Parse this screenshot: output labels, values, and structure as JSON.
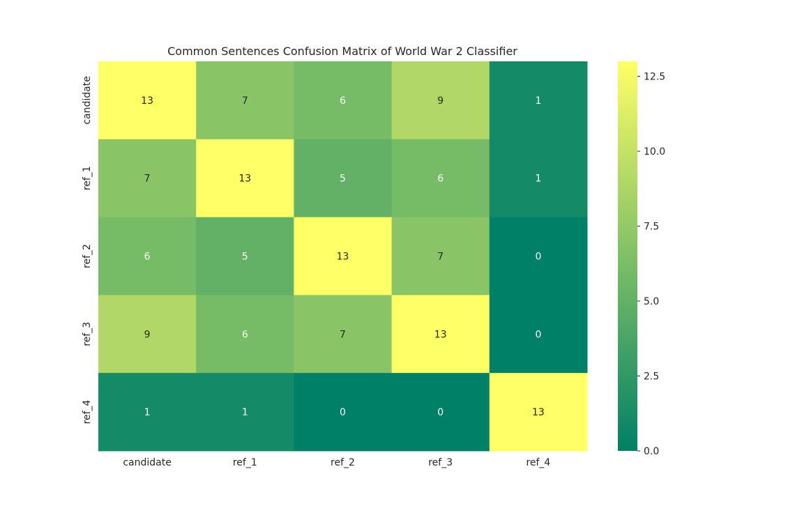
{
  "chart_data": {
    "type": "heatmap",
    "title": "Common Sentences Confusion Matrix of World War 2 Classifier",
    "x_categories": [
      "candidate",
      "ref_1",
      "ref_2",
      "ref_3",
      "ref_4"
    ],
    "y_categories": [
      "candidate",
      "ref_1",
      "ref_2",
      "ref_3",
      "ref_4"
    ],
    "values": [
      [
        13,
        7,
        6,
        9,
        1
      ],
      [
        7,
        13,
        5,
        6,
        1
      ],
      [
        6,
        5,
        13,
        7,
        0
      ],
      [
        9,
        6,
        7,
        13,
        0
      ],
      [
        1,
        1,
        0,
        0,
        13
      ]
    ],
    "annotations": true,
    "colormap": "summer",
    "colorbar": {
      "range": [
        0,
        13
      ],
      "ticks": [
        0.0,
        2.5,
        5.0,
        7.5,
        10.0,
        12.5
      ],
      "tick_labels": [
        "0.0",
        "2.5",
        "5.0",
        "7.5",
        "10.0",
        "12.5"
      ]
    },
    "colors": {
      "low": "#008066",
      "high": "#ffff66",
      "text_dark": "#262626",
      "text_light": "#ffffff"
    }
  }
}
